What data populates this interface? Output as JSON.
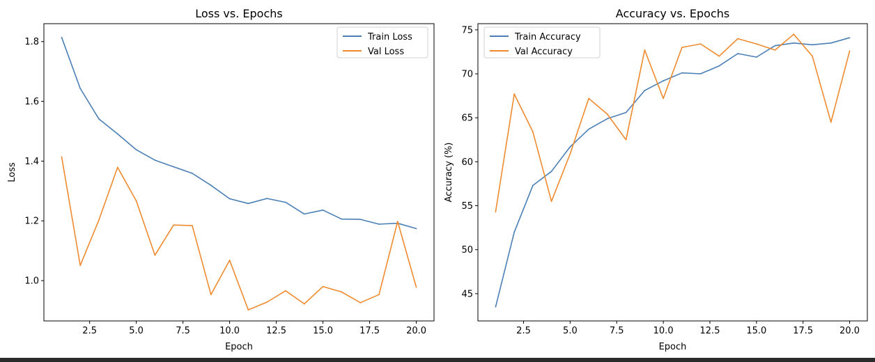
{
  "colors": {
    "train": "#4a7fb5",
    "val": "#ef8a2f",
    "bottom_bar": "#2b2b2b"
  },
  "chart_data": [
    {
      "type": "line",
      "title": "Loss vs. Epochs",
      "xlabel": "Epoch",
      "ylabel": "Loss",
      "xlim": [
        0.05,
        20.95
      ],
      "ylim": [
        0.865,
        1.86
      ],
      "xticks": [
        2.5,
        5.0,
        7.5,
        10.0,
        12.5,
        15.0,
        17.5,
        20.0
      ],
      "xtick_labels": [
        "2.5",
        "5.0",
        "7.5",
        "10.0",
        "12.5",
        "15.0",
        "17.5",
        "20.0"
      ],
      "yticks": [
        1.0,
        1.2,
        1.4,
        1.6,
        1.8
      ],
      "ytick_labels": [
        "1.0",
        "1.2",
        "1.4",
        "1.6",
        "1.8"
      ],
      "grid": false,
      "legend_position": "top-right",
      "x": [
        1,
        2,
        3,
        4,
        5,
        6,
        7,
        8,
        9,
        10,
        11,
        12,
        13,
        14,
        15,
        16,
        17,
        18,
        19,
        20
      ],
      "series": [
        {
          "name": "Train Loss",
          "color": "#4a7fb5",
          "values": [
            1.814,
            1.643,
            1.541,
            1.491,
            1.438,
            1.403,
            1.381,
            1.359,
            1.319,
            1.274,
            1.258,
            1.275,
            1.262,
            1.223,
            1.236,
            1.206,
            1.205,
            1.189,
            1.192,
            1.174
          ]
        },
        {
          "name": "Val Loss",
          "color": "#ef8a2f",
          "values": [
            1.414,
            1.051,
            1.203,
            1.379,
            1.267,
            1.085,
            1.186,
            1.184,
            0.953,
            1.068,
            0.902,
            0.928,
            0.966,
            0.922,
            0.98,
            0.962,
            0.926,
            0.953,
            1.198,
            0.978
          ]
        }
      ]
    },
    {
      "type": "line",
      "title": "Accuracy vs. Epochs",
      "xlabel": "Epoch",
      "ylabel": "Accuracy (%)",
      "xlim": [
        0.05,
        20.95
      ],
      "ylim": [
        41.9,
        75.7
      ],
      "xticks": [
        2.5,
        5.0,
        7.5,
        10.0,
        12.5,
        15.0,
        17.5,
        20.0
      ],
      "xtick_labels": [
        "2.5",
        "5.0",
        "7.5",
        "10.0",
        "12.5",
        "15.0",
        "17.5",
        "20.0"
      ],
      "yticks": [
        45,
        50,
        55,
        60,
        65,
        70,
        75
      ],
      "ytick_labels": [
        "45",
        "50",
        "55",
        "60",
        "65",
        "70",
        "75"
      ],
      "grid": false,
      "legend_position": "top-left",
      "x": [
        1,
        2,
        3,
        4,
        5,
        6,
        7,
        8,
        9,
        10,
        11,
        12,
        13,
        14,
        15,
        16,
        17,
        18,
        19,
        20
      ],
      "series": [
        {
          "name": "Train Accuracy",
          "color": "#4a7fb5",
          "values": [
            43.5,
            52.0,
            57.3,
            58.9,
            61.7,
            63.7,
            64.9,
            65.6,
            68.1,
            69.2,
            70.1,
            70.0,
            70.9,
            72.3,
            71.9,
            73.2,
            73.5,
            73.3,
            73.5,
            74.1
          ]
        },
        {
          "name": "Val Accuracy",
          "color": "#ef8a2f",
          "values": [
            54.3,
            67.7,
            63.4,
            55.5,
            60.9,
            67.2,
            65.4,
            62.5,
            72.7,
            67.2,
            73.0,
            73.4,
            72.0,
            74.0,
            73.4,
            72.7,
            74.5,
            72.0,
            64.5,
            72.6
          ]
        }
      ]
    }
  ]
}
